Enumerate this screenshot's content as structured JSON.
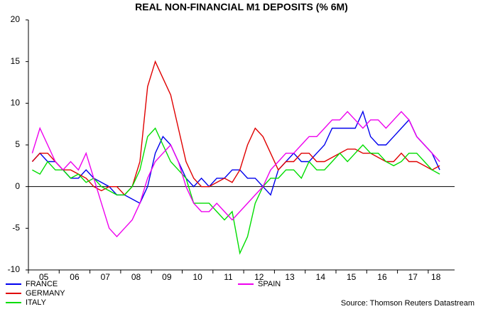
{
  "chart_data": {
    "type": "line",
    "title": "REAL NON-FINANCIAL M1 DEPOSITS (% 6M)",
    "source": "Source: Thomson Reuters Datastream",
    "categories": [
      null,
      null,
      "05",
      null,
      null,
      null,
      "06",
      null,
      null,
      null,
      "07",
      null,
      null,
      null,
      "08",
      null,
      null,
      null,
      "09",
      null,
      null,
      null,
      "10",
      null,
      null,
      null,
      "11",
      null,
      null,
      null,
      "12",
      null,
      null,
      null,
      "13",
      null,
      null,
      null,
      "14",
      null,
      null,
      null,
      "15",
      null,
      null,
      null,
      "16",
      null,
      null,
      null,
      "17",
      null,
      null,
      "18"
    ],
    "series": [
      {
        "name": "FRANCE",
        "color": "#0000ee",
        "values": [
          3,
          4,
          3,
          3,
          2,
          1,
          1,
          2,
          1,
          0.5,
          0,
          -1,
          -1,
          -1.5,
          -2,
          0,
          4,
          6,
          5,
          3,
          1,
          0,
          1,
          0,
          1,
          1,
          2,
          2,
          1,
          1,
          0,
          -1,
          2,
          3,
          4,
          3,
          3,
          4,
          5,
          7,
          7,
          7,
          7,
          9,
          6,
          5,
          5,
          6,
          7,
          8,
          6,
          5,
          4,
          2
        ]
      },
      {
        "name": "GERMANY",
        "color": "#e00000",
        "values": [
          3,
          4,
          4,
          3,
          2,
          2,
          1.5,
          1,
          0,
          -0.5,
          0,
          0,
          -1,
          0,
          3,
          12,
          15,
          13,
          11,
          7,
          3,
          1,
          0,
          0,
          0.5,
          1,
          0.5,
          2,
          5,
          7,
          6,
          4,
          2,
          3,
          3,
          4,
          4,
          3,
          3,
          3.5,
          4,
          4.5,
          4.5,
          4,
          4,
          3.5,
          3,
          3,
          4,
          3,
          3,
          2.5,
          2,
          2.5
        ]
      },
      {
        "name": "ITALY",
        "color": "#00dd00",
        "values": [
          2,
          1.5,
          3,
          2,
          2,
          1,
          1.5,
          0.5,
          1,
          0,
          -0.5,
          -1,
          -1,
          0,
          2,
          6,
          7,
          5,
          3,
          2,
          1,
          -2,
          -2,
          -2,
          -3,
          -4,
          -3,
          -8,
          -6,
          -2,
          0,
          1,
          1,
          2,
          2,
          1,
          3,
          2,
          2,
          3,
          4,
          3,
          4,
          5,
          4,
          4,
          3,
          2.5,
          3,
          4,
          4,
          3,
          2,
          1.5
        ]
      },
      {
        "name": "SPAIN",
        "color": "#ee00ee",
        "values": [
          4,
          7,
          5,
          3,
          2,
          3,
          2,
          4,
          1,
          -2,
          -5,
          -6,
          -5,
          -4,
          -2,
          1,
          3,
          4,
          5,
          3,
          0,
          -2,
          -3,
          -3,
          -2,
          -3,
          -4,
          -3,
          -2,
          -1,
          0,
          2,
          3,
          4,
          4,
          5,
          6,
          6,
          7,
          8,
          8,
          9,
          8,
          7,
          8,
          8,
          7,
          8,
          9,
          8,
          6,
          5,
          4,
          3
        ]
      }
    ],
    "ylim": [
      -10,
      20
    ],
    "yticks": [
      20,
      15,
      10,
      5,
      0,
      -5,
      -10
    ],
    "legend": "bottom"
  }
}
